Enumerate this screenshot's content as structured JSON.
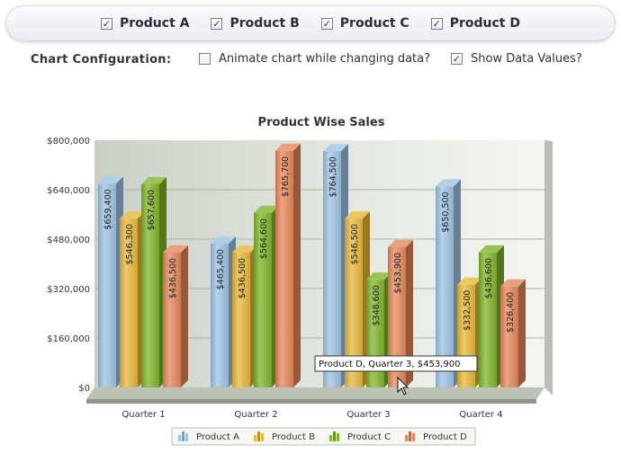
{
  "products": [
    {
      "label": "Product A",
      "checked": true
    },
    {
      "label": "Product B",
      "checked": true
    },
    {
      "label": "Product C",
      "checked": true
    },
    {
      "label": "Product D",
      "checked": true
    }
  ],
  "config": {
    "title": "Chart Configuration:",
    "animate_label": "Animate chart while changing data?",
    "animate_checked": false,
    "show_values_label": "Show Data Values?",
    "show_values_checked": true
  },
  "tooltip": "Product D, Quarter 3, $453,900",
  "chart_data": {
    "type": "bar",
    "title": "Product Wise Sales",
    "xlabel": "",
    "ylabel": "",
    "ylim": [
      0,
      800000
    ],
    "yticks": [
      0,
      160000,
      320000,
      480000,
      640000,
      800000
    ],
    "ytick_labels": [
      "$0",
      "$160,000",
      "$320,000",
      "$480,000",
      "$640,000",
      "$800,000"
    ],
    "categories": [
      "Quarter 1",
      "Quarter 2",
      "Quarter 3",
      "Quarter 4"
    ],
    "series": [
      {
        "name": "Product A",
        "color": "#9ec3e3",
        "values": [
          659400,
          465400,
          764500,
          650500
        ],
        "labels": [
          "$659,400",
          "$465,400",
          "$764,500",
          "$650,500"
        ]
      },
      {
        "name": "Product B",
        "color": "#e7b83a",
        "values": [
          546300,
          436500,
          546500,
          332500
        ],
        "labels": [
          "$546,300",
          "$436,500",
          "$546,500",
          "$332,500"
        ]
      },
      {
        "name": "Product C",
        "color": "#7fb52a",
        "values": [
          657600,
          564600,
          348600,
          436600
        ],
        "labels": [
          "$657,600",
          "$564,600",
          "$348,600",
          "$436,600"
        ]
      },
      {
        "name": "Product D",
        "color": "#e6875a",
        "values": [
          436500,
          765700,
          453900,
          326400
        ],
        "labels": [
          "$436,500",
          "$765,700",
          "$453,900",
          "$326,400"
        ]
      }
    ],
    "grid": true,
    "legend_position": "bottom",
    "three_d": true
  }
}
